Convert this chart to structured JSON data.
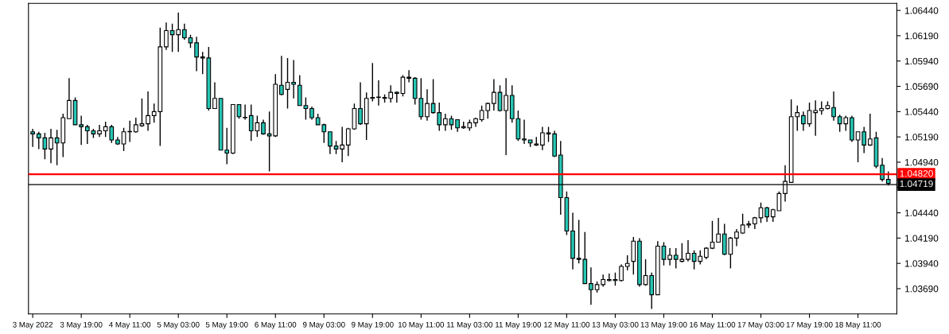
{
  "chart_data": {
    "type": "candlestick",
    "colors": [
      "#26c6b4",
      "#26c6b4",
      "#26c6b4",
      "#ffffff",
      "#26c6b4",
      "#ffffff",
      "#ffffff",
      "#26c6b4",
      "#26c6b4",
      "#26c6b4",
      "#26c6b4",
      "#ffffff",
      "#ffffff",
      "#26c6b4",
      "#26c6b4",
      "#ffffff",
      "#26c6b4",
      "#ffffff",
      "#ffffff",
      "#ffffff",
      "#ffffff",
      "#ffffff",
      "#ffffff",
      "#26c6b4",
      "#ffffff",
      "#26c6b4",
      "#26c6b4",
      "#26c6b4",
      "#26c6b4",
      "#26c6b4",
      "#ffffff",
      "#26c6b4",
      "#26c6b4",
      "#ffffff",
      "#26c6b4",
      "#26c6b4",
      "#26c6b4",
      "#ffffff",
      "#26c6b4",
      "#26c6b4",
      "#ffffff",
      "#26c6b4",
      "#ffffff",
      "#26c6b4",
      "#26c6b4",
      "#26c6b4",
      "#26c6b4",
      "#26c6b4",
      "#26c6b4",
      "#26c6b4",
      "#26c6b4",
      "#ffffff",
      "#ffffff",
      "#ffffff",
      "#26c6b4",
      "#ffffff",
      "#ffffff",
      "#26c6b4",
      "#26c6b4",
      "#ffffff",
      "#26c6b4",
      "#ffffff",
      "#26c6b4",
      "#26c6b4",
      "#26c6b4",
      "#ffffff",
      "#26c6b4",
      "#26c6b4",
      "#ffffff",
      "#26c6b4",
      "#26c6b4",
      "#ffffff",
      "#ffffff",
      "#ffffff",
      "#ffffff",
      "#ffffff",
      "#ffffff",
      "#26c6b4",
      "#ffffff",
      "#26c6b4",
      "#26c6b4",
      "#26c6b4",
      "#26c6b4",
      "#26c6b4",
      "#ffffff",
      "#26c6b4",
      "#26c6b4",
      "#26c6b4",
      "#26c6b4",
      "#26c6b4",
      "#26c6b4",
      "#26c6b4",
      "#26c6b4",
      "#ffffff",
      "#ffffff",
      "#ffffff",
      "#26c6b4",
      "#ffffff",
      "#ffffff",
      "#ffffff",
      "#26c6b4",
      "#ffffff",
      "#26c6b4",
      "#ffffff",
      "#26c6b4",
      "#ffffff",
      "#26c6b4",
      "#ffffff",
      "#ffffff",
      "#26c6b4",
      "#ffffff",
      "#ffffff",
      "#ffffff",
      "#ffffff",
      "#26c6b4",
      "#ffffff",
      "#ffffff",
      "#ffffff",
      "#ffffff",
      "#ffffff",
      "#ffffff",
      "#26c6b4",
      "#ffffff",
      "#ffffff",
      "#ffffff",
      "#ffffff",
      "#ffffff",
      "#26c6b4",
      "#ffffff",
      "#ffffff",
      "#ffffff",
      "#ffffff",
      "#26c6b4",
      "#26c6b4",
      "#ffffff",
      "#26c6b4",
      "#ffffff",
      "#26c6b4",
      "#ffffff",
      "#26c6b4",
      "#26c6b4",
      "#26c6b4"
    ],
    "categories": [
      "3 May 2022",
      null,
      null,
      null,
      null,
      null,
      null,
      null,
      "3 May 19:00",
      null,
      null,
      null,
      null,
      null,
      null,
      null,
      "4 May 11:00",
      null,
      null,
      null,
      null,
      null,
      null,
      null,
      "5 May 03:00",
      null,
      null,
      null,
      null,
      null,
      null,
      null,
      "5 May 19:00",
      null,
      null,
      null,
      null,
      null,
      null,
      null,
      "6 May 11:00",
      null,
      null,
      null,
      null,
      null,
      null,
      null,
      "9 May 03:00",
      null,
      null,
      null,
      null,
      null,
      null,
      null,
      "9 May 19:00",
      null,
      null,
      null,
      null,
      null,
      null,
      null,
      "10 May 11:00",
      null,
      null,
      null,
      null,
      null,
      null,
      null,
      "11 May 03:00",
      null,
      null,
      null,
      null,
      null,
      null,
      null,
      "11 May 19:00",
      null,
      null,
      null,
      null,
      null,
      null,
      null,
      "12 May 11:00",
      null,
      null,
      null,
      null,
      null,
      null,
      null,
      "13 May 03:00",
      null,
      null,
      null,
      null,
      null,
      null,
      null,
      "13 May 19:00",
      null,
      null,
      null,
      null,
      null,
      null,
      null,
      "16 May 11:00",
      null,
      null,
      null,
      null,
      null,
      null,
      null,
      "17 May 03:00",
      null,
      null,
      null,
      null,
      null,
      null,
      null,
      "17 May 19:00",
      null,
      null,
      null,
      null,
      null,
      null,
      null,
      "18 May 11:00",
      null,
      null,
      null,
      null,
      null
    ],
    "ohlc": [
      [
        1.0524,
        1.0527,
        1.0509,
        1.0522
      ],
      [
        1.0522,
        1.0524,
        1.0507,
        1.0518
      ],
      [
        1.0518,
        1.0523,
        1.0497,
        1.0507
      ],
      [
        1.0507,
        1.0527,
        1.0493,
        1.0518
      ],
      [
        1.0518,
        1.0526,
        1.0491,
        1.0513
      ],
      [
        1.0513,
        1.0542,
        1.0499,
        1.0538
      ],
      [
        1.0537,
        1.0577,
        1.0537,
        1.0555
      ],
      [
        1.0555,
        1.0558,
        1.0531,
        1.0531
      ],
      [
        1.0531,
        1.054,
        1.0511,
        1.0529
      ],
      [
        1.0529,
        1.0531,
        1.0512,
        1.0525
      ],
      [
        1.0525,
        1.0527,
        1.0518,
        1.0522
      ],
      [
        1.0522,
        1.0531,
        1.0519,
        1.0525
      ],
      [
        1.0525,
        1.0534,
        1.0519,
        1.0529
      ],
      [
        1.0529,
        1.0531,
        1.0513,
        1.0516
      ],
      [
        1.0516,
        1.0519,
        1.0511,
        1.0512
      ],
      [
        1.0512,
        1.0528,
        1.0505,
        1.0524
      ],
      [
        1.0524,
        1.0535,
        1.0514,
        1.0524
      ],
      [
        1.0524,
        1.0538,
        1.0523,
        1.0531
      ],
      [
        1.053,
        1.0557,
        1.0529,
        1.0532
      ],
      [
        1.0532,
        1.0564,
        1.0525,
        1.054
      ],
      [
        1.054,
        1.0552,
        1.0533,
        1.0544
      ],
      [
        1.0544,
        1.0627,
        1.051,
        1.0608
      ],
      [
        1.0608,
        1.0632,
        1.0605,
        1.0624
      ],
      [
        1.0624,
        1.0631,
        1.0603,
        1.062
      ],
      [
        1.062,
        1.0642,
        1.0603,
        1.0625
      ],
      [
        1.0625,
        1.0631,
        1.0615,
        1.0617
      ],
      [
        1.0617,
        1.062,
        1.0607,
        1.0612
      ],
      [
        1.0612,
        1.0618,
        1.0584,
        1.0598
      ],
      [
        1.0598,
        1.0603,
        1.0581,
        1.0597
      ],
      [
        1.0597,
        1.0608,
        1.0545,
        1.0547
      ],
      [
        1.0547,
        1.0573,
        1.0547,
        1.0557
      ],
      [
        1.0557,
        1.0557,
        1.0506,
        1.0506
      ],
      [
        1.0506,
        1.0528,
        1.0492,
        1.0503
      ],
      [
        1.0503,
        1.0551,
        1.0502,
        1.0551
      ],
      [
        1.0551,
        1.0551,
        1.0537,
        1.0539
      ],
      [
        1.0538,
        1.0551,
        1.0536,
        1.0538
      ],
      [
        1.054,
        1.0551,
        1.0515,
        1.0525
      ],
      [
        1.0525,
        1.054,
        1.0519,
        1.0533
      ],
      [
        1.0533,
        1.0536,
        1.0521,
        1.0522
      ],
      [
        1.0522,
        1.0544,
        1.0485,
        1.052
      ],
      [
        1.052,
        1.0581,
        1.0519,
        1.0571
      ],
      [
        1.057,
        1.0599,
        1.056,
        1.0561
      ],
      [
        1.0566,
        1.0597,
        1.0547,
        1.0573
      ],
      [
        1.0573,
        1.0595,
        1.0557,
        1.0571
      ],
      [
        1.057,
        1.058,
        1.055,
        1.055
      ],
      [
        1.055,
        1.0558,
        1.0536,
        1.0547
      ],
      [
        1.0547,
        1.0549,
        1.0536,
        1.0538
      ],
      [
        1.0538,
        1.0542,
        1.0531,
        1.0531
      ],
      [
        1.0531,
        1.0532,
        1.0513,
        1.0524
      ],
      [
        1.0524,
        1.0524,
        1.0502,
        1.051
      ],
      [
        1.051,
        1.0515,
        1.0502,
        1.0507
      ],
      [
        1.0507,
        1.0529,
        1.0494,
        1.0511
      ],
      [
        1.0511,
        1.0528,
        1.05,
        1.0527
      ],
      [
        1.0527,
        1.0552,
        1.0526,
        1.0547
      ],
      [
        1.0547,
        1.0573,
        1.0531,
        1.0532
      ],
      [
        1.0532,
        1.0563,
        1.0516,
        1.0557
      ],
      [
        1.0557,
        1.0592,
        1.0554,
        1.0558
      ],
      [
        1.0558,
        1.0575,
        1.055,
        1.0558
      ],
      [
        1.0558,
        1.0561,
        1.0553,
        1.0557
      ],
      [
        1.0557,
        1.057,
        1.0553,
        1.0563
      ],
      [
        1.0563,
        1.0564,
        1.0553,
        1.0562
      ],
      [
        1.0562,
        1.058,
        1.0559,
        1.0578
      ],
      [
        1.0578,
        1.0585,
        1.0573,
        1.0577
      ],
      [
        1.0577,
        1.0578,
        1.0551,
        1.0557
      ],
      [
        1.0557,
        1.0577,
        1.0536,
        1.0539
      ],
      [
        1.0539,
        1.0566,
        1.0535,
        1.0552
      ],
      [
        1.0552,
        1.0576,
        1.0542,
        1.0543
      ],
      [
        1.0543,
        1.0553,
        1.0525,
        1.0531
      ],
      [
        1.0531,
        1.0542,
        1.0525,
        1.0537
      ],
      [
        1.0537,
        1.054,
        1.0526,
        1.0531
      ],
      [
        1.0536,
        1.0536,
        1.0524,
        1.0528
      ],
      [
        1.0528,
        1.0534,
        1.0527,
        1.0529
      ],
      [
        1.0528,
        1.0536,
        1.0525,
        1.0533
      ],
      [
        1.0533,
        1.0538,
        1.0529,
        1.0537
      ],
      [
        1.0536,
        1.055,
        1.0534,
        1.0545
      ],
      [
        1.0545,
        1.0553,
        1.0537,
        1.0552
      ],
      [
        1.0552,
        1.0576,
        1.0545,
        1.0563
      ],
      [
        1.0563,
        1.057,
        1.0544,
        1.0545
      ],
      [
        1.0545,
        1.0577,
        1.0501,
        1.056
      ],
      [
        1.056,
        1.057,
        1.0533,
        1.0537
      ],
      [
        1.0537,
        1.0545,
        1.0515,
        1.0517
      ],
      [
        1.0517,
        1.0536,
        1.0512,
        1.0516
      ],
      [
        1.0516,
        1.0516,
        1.0509,
        1.0513
      ],
      [
        1.0512,
        1.0519,
        1.051,
        1.0511
      ],
      [
        1.0511,
        1.0529,
        1.0506,
        1.0523
      ],
      [
        1.0523,
        1.0529,
        1.0514,
        1.0522
      ],
      [
        1.0522,
        1.0525,
        1.0499,
        1.05
      ],
      [
        1.0501,
        1.0515,
        1.0442,
        1.0459
      ],
      [
        1.0459,
        1.0465,
        1.0422,
        1.0426
      ],
      [
        1.0426,
        1.0444,
        1.0388,
        1.0399
      ],
      [
        1.0399,
        1.0437,
        1.0394,
        1.0398
      ],
      [
        1.0398,
        1.0425,
        1.0374,
        1.0374
      ],
      [
        1.0374,
        1.039,
        1.0353,
        1.0368
      ],
      [
        1.0368,
        1.0376,
        1.0365,
        1.0373
      ],
      [
        1.0373,
        1.0383,
        1.0371,
        1.0378
      ],
      [
        1.0377,
        1.0384,
        1.0376,
        1.0378
      ],
      [
        1.0378,
        1.0385,
        1.0372,
        1.0377
      ],
      [
        1.0377,
        1.0393,
        1.0376,
        1.0391
      ],
      [
        1.0391,
        1.0402,
        1.0387,
        1.0394
      ],
      [
        1.0396,
        1.042,
        1.0383,
        1.0416
      ],
      [
        1.0416,
        1.0419,
        1.0371,
        1.0373
      ],
      [
        1.0373,
        1.0398,
        1.0372,
        1.0382
      ],
      [
        1.0382,
        1.0385,
        1.0349,
        1.0363
      ],
      [
        1.0363,
        1.0416,
        1.0363,
        1.0411
      ],
      [
        1.0411,
        1.0415,
        1.0392,
        1.0398
      ],
      [
        1.0398,
        1.0409,
        1.0392,
        1.0402
      ],
      [
        1.0402,
        1.0409,
        1.0389,
        1.0398
      ],
      [
        1.0396,
        1.0414,
        1.0395,
        1.0398
      ],
      [
        1.0398,
        1.0417,
        1.0396,
        1.0404
      ],
      [
        1.0404,
        1.0407,
        1.0388,
        1.0396
      ],
      [
        1.0396,
        1.0407,
        1.0393,
        1.0401
      ],
      [
        1.04,
        1.041,
        1.0398,
        1.0409
      ],
      [
        1.0409,
        1.0436,
        1.0408,
        1.0415
      ],
      [
        1.0415,
        1.0439,
        1.0415,
        1.0423
      ],
      [
        1.0423,
        1.0433,
        1.0402,
        1.0403
      ],
      [
        1.0403,
        1.042,
        1.0389,
        1.0419
      ],
      [
        1.0419,
        1.0428,
        1.0411,
        1.0425
      ],
      [
        1.0424,
        1.0443,
        1.0423,
        1.0432
      ],
      [
        1.0432,
        1.0436,
        1.0429,
        1.0433
      ],
      [
        1.0433,
        1.044,
        1.0428,
        1.0439
      ],
      [
        1.0439,
        1.0454,
        1.0434,
        1.0449
      ],
      [
        1.0449,
        1.045,
        1.0435,
        1.044
      ],
      [
        1.044,
        1.0448,
        1.0435,
        1.0447
      ],
      [
        1.0446,
        1.0465,
        1.0446,
        1.0463
      ],
      [
        1.0463,
        1.0491,
        1.0455,
        1.0475
      ],
      [
        1.0474,
        1.0556,
        1.0474,
        1.0539
      ],
      [
        1.0539,
        1.055,
        1.0525,
        1.0543
      ],
      [
        1.054,
        1.0544,
        1.0525,
        1.0532
      ],
      [
        1.0532,
        1.0553,
        1.0529,
        1.0545
      ],
      [
        1.0543,
        1.0555,
        1.052,
        1.0545
      ],
      [
        1.0545,
        1.0554,
        1.0541,
        1.0547
      ],
      [
        1.0547,
        1.0554,
        1.0546,
        1.055
      ],
      [
        1.0548,
        1.0564,
        1.0535,
        1.0539
      ],
      [
        1.0539,
        1.0541,
        1.0524,
        1.0532
      ],
      [
        1.0532,
        1.054,
        1.0525,
        1.0538
      ],
      [
        1.0538,
        1.054,
        1.0514,
        1.0516
      ],
      [
        1.0516,
        1.0524,
        1.0494,
        1.0524
      ],
      [
        1.0524,
        1.0529,
        1.0503,
        1.0511
      ],
      [
        1.0511,
        1.0542,
        1.051,
        1.0517
      ],
      [
        1.0518,
        1.0524,
        1.0488,
        1.049
      ],
      [
        1.0491,
        1.0498,
        1.0475,
        1.0477
      ],
      [
        1.0477,
        1.0485,
        1.0471,
        1.0473
      ]
    ],
    "ylim": [
      1.0344,
      1.0651
    ],
    "yticks": [
      {
        "value": 1.0644,
        "label": "1.06440"
      },
      {
        "value": 1.0619,
        "label": "1.06190"
      },
      {
        "value": 1.0594,
        "label": "1.05940"
      },
      {
        "value": 1.0569,
        "label": "1.05690"
      },
      {
        "value": 1.0544,
        "label": "1.05440"
      },
      {
        "value": 1.0519,
        "label": "1.05190"
      },
      {
        "value": 1.0494,
        "label": "1.04940"
      },
      {
        "value": 1.0469,
        "label": null
      },
      {
        "value": 1.0444,
        "label": "1.04440"
      },
      {
        "value": 1.0419,
        "label": "1.04190"
      },
      {
        "value": 1.0394,
        "label": "1.03940"
      },
      {
        "value": 1.0369,
        "label": "1.03690"
      }
    ],
    "ref_lines": [
      {
        "axis": "y",
        "value": 1.0482,
        "label": "1.04820",
        "color": "#ff0000",
        "line_style": "solid"
      },
      {
        "axis": "y",
        "value": 1.04719,
        "label": "1.04719",
        "color": "#000000",
        "line_style": "solid"
      }
    ],
    "grid": false,
    "legend": false
  }
}
